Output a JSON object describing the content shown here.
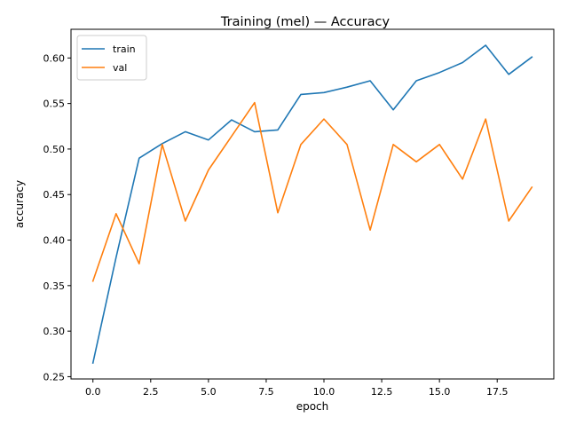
{
  "chart_data": {
    "type": "line",
    "title": "Training (mel) — Accuracy",
    "xlabel": "epoch",
    "ylabel": "accuracy",
    "xlim": [
      -0.95,
      19.95
    ],
    "ylim": [
      0.2475,
      0.6315
    ],
    "xticks": [
      0.0,
      2.5,
      5.0,
      7.5,
      10.0,
      12.5,
      15.0,
      17.5
    ],
    "xtick_labels": [
      "0.0",
      "2.5",
      "5.0",
      "7.5",
      "10.0",
      "12.5",
      "15.0",
      "17.5"
    ],
    "yticks": [
      0.25,
      0.3,
      0.35,
      0.4,
      0.45,
      0.5,
      0.55,
      0.6
    ],
    "ytick_labels": [
      "0.25",
      "0.30",
      "0.35",
      "0.40",
      "0.45",
      "0.50",
      "0.55",
      "0.60"
    ],
    "grid": false,
    "legend_position": "top-left",
    "x": [
      0,
      1,
      2,
      3,
      4,
      5,
      6,
      7,
      8,
      9,
      10,
      11,
      12,
      13,
      14,
      15,
      16,
      17,
      18,
      19
    ],
    "series": [
      {
        "name": "train",
        "color": "#1f77b4",
        "values": [
          0.265,
          0.381,
          0.49,
          0.506,
          0.519,
          0.51,
          0.532,
          0.519,
          0.521,
          0.56,
          0.562,
          0.568,
          0.575,
          0.543,
          0.575,
          0.584,
          0.595,
          0.614,
          0.582,
          0.601
        ]
      },
      {
        "name": "val",
        "color": "#ff7f0e",
        "values": [
          0.355,
          0.429,
          0.374,
          0.505,
          0.421,
          0.477,
          0.514,
          0.551,
          0.43,
          0.505,
          0.533,
          0.505,
          0.411,
          0.505,
          0.486,
          0.505,
          0.467,
          0.533,
          0.421,
          0.458
        ]
      }
    ]
  }
}
